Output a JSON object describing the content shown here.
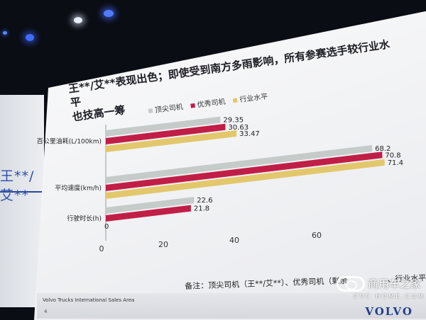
{
  "side_panel": {
    "text": "王**/艾**"
  },
  "title": {
    "line1": "王**/艾**表现出色；即使受到南方多雨影响，所有参赛选手较行业水平",
    "line2": "也技高一筹"
  },
  "colors": {
    "top": "#c4cbc8",
    "excellent": "#c11e47",
    "industry": "#e2c76c"
  },
  "chart_data": {
    "type": "bar",
    "orientation": "horizontal",
    "title": "王**/艾**表现出色；即使受到南方多雨影响，所有参赛选手较行业水平也技高一筹",
    "categories": [
      "百公里油耗(L/100km)",
      "平均速度(km/h)",
      "行驶时长(h)"
    ],
    "series": [
      {
        "name": "顶尖司机",
        "values": [
          29.35,
          68.2,
          22.6
        ]
      },
      {
        "name": "优秀司机",
        "values": [
          30.63,
          70.8,
          21.8
        ]
      },
      {
        "name": "行业水平",
        "values": [
          33.47,
          71.4,
          0
        ]
      }
    ],
    "data_labels": [
      [
        "29.35",
        "68.2",
        "22.6"
      ],
      [
        "30.63",
        "70.8",
        "21.8"
      ],
      [
        "33.47",
        "71.4",
        "0"
      ]
    ],
    "x_ticks": [
      "0",
      "20",
      "40",
      "60"
    ],
    "xlim": [
      0,
      75
    ],
    "grid": false,
    "legend": "top"
  },
  "footnote": "备注：顶尖司机（王**/艾**）、优秀司机（剩余",
  "footnote_tail": "、行业水平",
  "footer": {
    "org": "Volvo Trucks International Sales Area",
    "page": "4",
    "brand": "VOLVO"
  },
  "watermark": {
    "cn": "商用车之家",
    "en": "CVC HOME.COM"
  }
}
